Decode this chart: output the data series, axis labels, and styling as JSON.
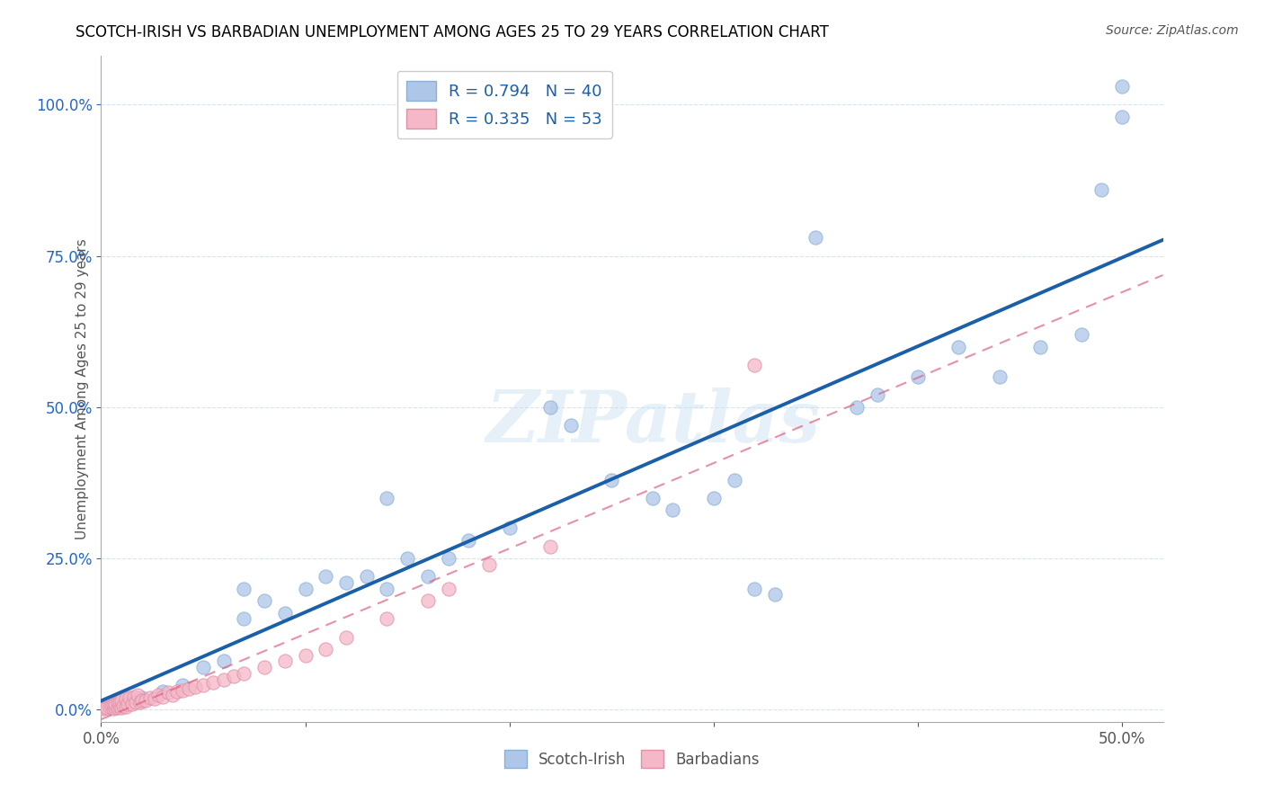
{
  "title": "SCOTCH-IRISH VS BARBADIAN UNEMPLOYMENT AMONG AGES 25 TO 29 YEARS CORRELATION CHART",
  "source": "Source: ZipAtlas.com",
  "ylabel": "Unemployment Among Ages 25 to 29 years",
  "xlim": [
    0.0,
    0.52
  ],
  "ylim": [
    -0.02,
    1.08
  ],
  "legend_r1": "R = 0.794   N = 40",
  "legend_r2": "R = 0.335   N = 53",
  "scotch_irish_scatter_color": "#aec6e8",
  "barbadian_scatter_color": "#f4b8c8",
  "trend_blue": "#1a5fa8",
  "trend_pink": "#e06080",
  "watermark": "ZIPatlas",
  "scotch_irish_label": "Scotch-Irish",
  "barbadian_label": "Barbadians",
  "scotch_irish_x": [
    0.02,
    0.03,
    0.04,
    0.05,
    0.06,
    0.07,
    0.07,
    0.08,
    0.09,
    0.1,
    0.11,
    0.12,
    0.13,
    0.14,
    0.14,
    0.15,
    0.16,
    0.17,
    0.18,
    0.2,
    0.22,
    0.23,
    0.25,
    0.27,
    0.28,
    0.3,
    0.31,
    0.32,
    0.33,
    0.35,
    0.37,
    0.38,
    0.4,
    0.42,
    0.44,
    0.46,
    0.48,
    0.49,
    0.5,
    0.5
  ],
  "scotch_irish_y": [
    0.02,
    0.03,
    0.04,
    0.07,
    0.08,
    0.15,
    0.2,
    0.18,
    0.16,
    0.2,
    0.22,
    0.21,
    0.22,
    0.35,
    0.2,
    0.25,
    0.22,
    0.25,
    0.28,
    0.3,
    0.5,
    0.47,
    0.38,
    0.35,
    0.33,
    0.35,
    0.38,
    0.2,
    0.19,
    0.78,
    0.5,
    0.52,
    0.55,
    0.6,
    0.55,
    0.6,
    0.62,
    0.86,
    0.98,
    1.03
  ],
  "barbadian_x": [
    0.001,
    0.002,
    0.003,
    0.004,
    0.005,
    0.006,
    0.006,
    0.007,
    0.007,
    0.008,
    0.008,
    0.009,
    0.009,
    0.01,
    0.01,
    0.011,
    0.012,
    0.012,
    0.013,
    0.014,
    0.015,
    0.016,
    0.017,
    0.018,
    0.019,
    0.02,
    0.022,
    0.024,
    0.026,
    0.028,
    0.03,
    0.033,
    0.035,
    0.037,
    0.04,
    0.043,
    0.046,
    0.05,
    0.055,
    0.06,
    0.065,
    0.07,
    0.08,
    0.09,
    0.1,
    0.11,
    0.12,
    0.14,
    0.16,
    0.17,
    0.19,
    0.22,
    0.32
  ],
  "barbadian_y": [
    0.002,
    0.003,
    0.004,
    0.005,
    0.006,
    0.002,
    0.008,
    0.003,
    0.01,
    0.004,
    0.012,
    0.005,
    0.014,
    0.003,
    0.016,
    0.007,
    0.005,
    0.018,
    0.009,
    0.02,
    0.01,
    0.022,
    0.012,
    0.024,
    0.013,
    0.016,
    0.015,
    0.02,
    0.018,
    0.025,
    0.022,
    0.028,
    0.025,
    0.03,
    0.032,
    0.035,
    0.038,
    0.04,
    0.045,
    0.05,
    0.055,
    0.06,
    0.07,
    0.08,
    0.09,
    0.1,
    0.12,
    0.15,
    0.18,
    0.2,
    0.24,
    0.27,
    0.57
  ],
  "ytick_positions": [
    0.0,
    0.25,
    0.5,
    0.75,
    1.0
  ],
  "ytick_labels": [
    "0.0%",
    "25.0%",
    "50.0%",
    "75.0%",
    "100.0%"
  ],
  "xtick_positions": [
    0.0,
    0.1,
    0.2,
    0.3,
    0.4,
    0.5
  ],
  "xtick_labels": [
    "0.0%",
    "",
    "",
    "",
    "",
    "50.0%"
  ]
}
